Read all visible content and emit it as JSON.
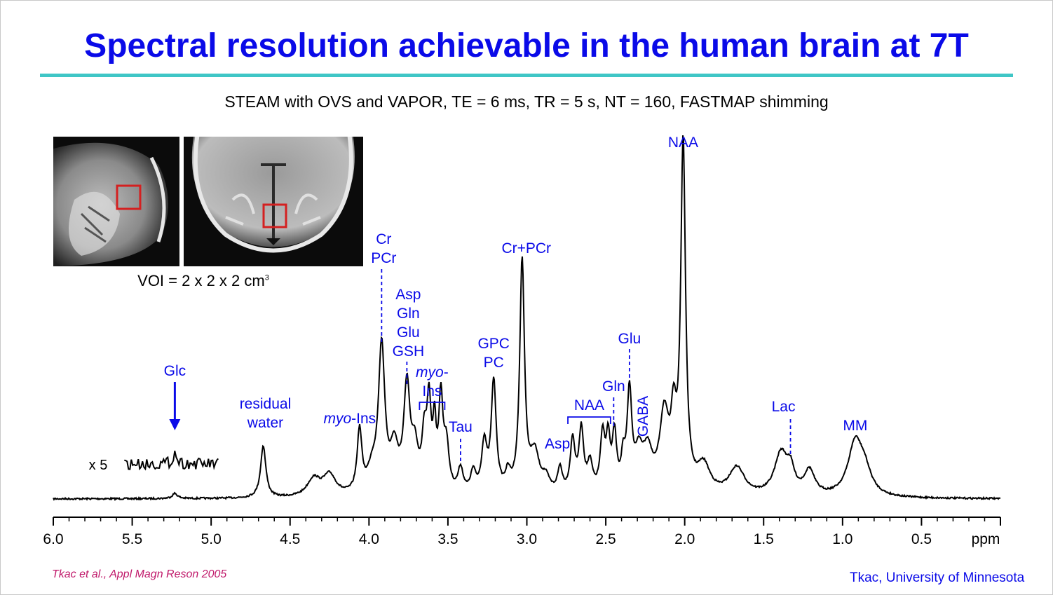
{
  "slide": {
    "title": "Spectral resolution achievable in the human brain at 7T",
    "subtitle": "STEAM with OVS and VAPOR, TE = 6 ms, TR = 5 s, NT = 160, FASTMAP shimming",
    "voi_text": "VOI = 2 x 2 x 2 cm",
    "voi_exponent": "3",
    "citation": "Tkac et al., Appl Magn Reson 2005",
    "credit": "Tkac, University of Minnesota",
    "colors": {
      "title": "#0a0ae8",
      "rule": "#3fc6c6",
      "labels": "#0a0ae8",
      "citation": "#c0186a",
      "voi_box": "#d42020"
    },
    "images": [
      {
        "name": "sagittal-mri-image",
        "view": "sagittal"
      },
      {
        "name": "axial-mri-image",
        "view": "axial"
      }
    ]
  },
  "chart_data": {
    "type": "line",
    "xlabel": "ppm",
    "x_reversed": true,
    "xlim": [
      6.0,
      0.0
    ],
    "x_ticks": [
      "6.0",
      "5.5",
      "5.0",
      "4.5",
      "4.0",
      "3.5",
      "3.0",
      "2.5",
      "2.0",
      "1.5",
      "1.0",
      "0.5"
    ],
    "ylim": [
      0,
      100
    ],
    "baseline": 2,
    "peaks": [
      {
        "ppm": 5.23,
        "height": 1.5,
        "width": 0.02
      },
      {
        "ppm": 4.67,
        "height": 15,
        "width": 0.02
      },
      {
        "ppm": 4.35,
        "height": 5,
        "width": 0.05
      },
      {
        "ppm": 4.25,
        "height": 6,
        "width": 0.05
      },
      {
        "ppm": 4.06,
        "height": 18,
        "width": 0.018
      },
      {
        "ppm": 3.98,
        "height": 6,
        "width": 0.035
      },
      {
        "ppm": 3.92,
        "height": 42,
        "width": 0.024
      },
      {
        "ppm": 3.84,
        "height": 12,
        "width": 0.03
      },
      {
        "ppm": 3.76,
        "height": 30,
        "width": 0.024
      },
      {
        "ppm": 3.71,
        "height": 11,
        "width": 0.025
      },
      {
        "ppm": 3.65,
        "height": 14,
        "width": 0.018
      },
      {
        "ppm": 3.62,
        "height": 24,
        "width": 0.016
      },
      {
        "ppm": 3.585,
        "height": 17,
        "width": 0.012
      },
      {
        "ppm": 3.545,
        "height": 26,
        "width": 0.016
      },
      {
        "ppm": 3.51,
        "height": 13,
        "width": 0.02
      },
      {
        "ppm": 3.42,
        "height": 7,
        "width": 0.02
      },
      {
        "ppm": 3.34,
        "height": 6,
        "width": 0.02
      },
      {
        "ppm": 3.27,
        "height": 14,
        "width": 0.02
      },
      {
        "ppm": 3.21,
        "height": 32,
        "width": 0.019
      },
      {
        "ppm": 3.12,
        "height": 5,
        "width": 0.02
      },
      {
        "ppm": 3.03,
        "height": 67,
        "width": 0.018
      },
      {
        "ppm": 2.95,
        "height": 11,
        "width": 0.035
      },
      {
        "ppm": 2.88,
        "height": 4,
        "width": 0.03
      },
      {
        "ppm": 2.79,
        "height": 7,
        "width": 0.018
      },
      {
        "ppm": 2.71,
        "height": 15,
        "width": 0.018
      },
      {
        "ppm": 2.655,
        "height": 18,
        "width": 0.018
      },
      {
        "ppm": 2.6,
        "height": 8,
        "width": 0.02
      },
      {
        "ppm": 2.52,
        "height": 16,
        "width": 0.018
      },
      {
        "ppm": 2.485,
        "height": 14,
        "width": 0.015
      },
      {
        "ppm": 2.445,
        "height": 16,
        "width": 0.016
      },
      {
        "ppm": 2.39,
        "height": 8,
        "width": 0.015
      },
      {
        "ppm": 2.35,
        "height": 28,
        "width": 0.018
      },
      {
        "ppm": 2.29,
        "height": 10,
        "width": 0.03
      },
      {
        "ppm": 2.235,
        "height": 11,
        "width": 0.035
      },
      {
        "ppm": 2.13,
        "height": 22,
        "width": 0.035
      },
      {
        "ppm": 2.07,
        "height": 18,
        "width": 0.02
      },
      {
        "ppm": 2.01,
        "height": 100,
        "width": 0.018
      },
      {
        "ppm": 1.88,
        "height": 8,
        "width": 0.05
      },
      {
        "ppm": 1.67,
        "height": 8,
        "width": 0.06
      },
      {
        "ppm": 1.39,
        "height": 12,
        "width": 0.05
      },
      {
        "ppm": 1.33,
        "height": 6,
        "width": 0.03
      },
      {
        "ppm": 1.21,
        "height": 7,
        "width": 0.04
      },
      {
        "ppm": 0.92,
        "height": 15,
        "width": 0.055
      },
      {
        "ppm": 0.86,
        "height": 6,
        "width": 0.05
      }
    ],
    "inset": {
      "label": "x 5",
      "ppm_range": [
        5.55,
        4.95
      ],
      "peak_ppm": 5.23
    },
    "annotations": {
      "glc": {
        "text": "Glc",
        "ppm": 5.23
      },
      "residual_water": {
        "lines": [
          "residual",
          "water"
        ],
        "ppm": 4.67
      },
      "myo_ins_left": {
        "italic": "myo",
        "rest": "-Ins",
        "ppm": 4.06
      },
      "cr_pcr": {
        "lines": [
          "Cr",
          "PCr"
        ],
        "ppm": 3.92
      },
      "asp_group": {
        "lines": [
          "Asp",
          "Gln",
          "Glu",
          "GSH"
        ],
        "ppm": 3.76
      },
      "myo_ins_right": {
        "italic": "myo",
        "rest": "-",
        "line2": "Ins",
        "ppm_from": 3.68,
        "ppm_to": 3.52
      },
      "tau": {
        "text": "Tau",
        "ppm": 3.42
      },
      "gpc_pc": {
        "lines": [
          "GPC",
          "PC"
        ],
        "ppm": 3.21
      },
      "cr_pcr_2": {
        "text": "Cr+PCr",
        "ppm": 3.03
      },
      "asp": {
        "text": "Asp",
        "ppm": 2.78
      },
      "naa_small": {
        "text": "NAA",
        "ppm_from": 2.74,
        "ppm_to": 2.47
      },
      "gln": {
        "text": "Gln",
        "ppm": 2.45
      },
      "glu": {
        "text": "Glu",
        "ppm": 2.35
      },
      "gaba": {
        "text": "GABA",
        "ppm": 2.26
      },
      "naa": {
        "text": "NAA",
        "ppm": 2.01
      },
      "lac": {
        "text": "Lac",
        "ppm": 1.33
      },
      "mm": {
        "text": "MM",
        "ppm": 0.92
      }
    }
  }
}
